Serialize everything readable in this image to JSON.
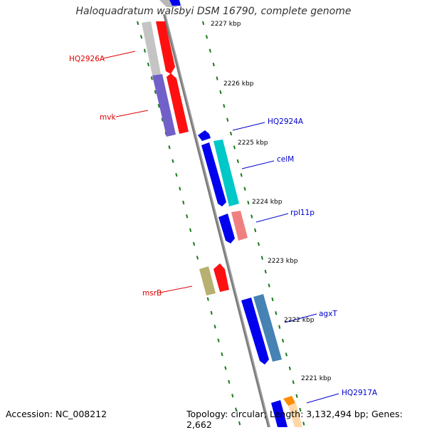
{
  "title": "Haloquadratum walsbyi DSM 16790, complete genome",
  "footer": {
    "accession_label": "Accession:",
    "accession": "NC_008212",
    "topology_label": "Topology:",
    "topology": "circular",
    "length_label": "Length:",
    "length": "3,132,494 bp",
    "genes_label": "Genes:",
    "genes": "2,662"
  },
  "colors": {
    "backbone": "#808080",
    "scale_ticks": "#1a7a1a",
    "reverse_label": "#e00000",
    "forward_label": "#0000cc",
    "gene_forward": "#0000ee",
    "gene_reverse": "#ff0000"
  },
  "scale_labels": [
    "2227 kbp",
    "2226 kbp",
    "2225 kbp",
    "2224 kbp",
    "2223 kbp",
    "2222 kbp",
    "2221 kbp"
  ],
  "gene_labels_reverse": [
    "HQ2926A",
    "mvk",
    "msrB"
  ],
  "gene_labels_forward": [
    "HQ2924A",
    "celM",
    "rpl11p",
    "agxT",
    "HQ2917A"
  ]
}
